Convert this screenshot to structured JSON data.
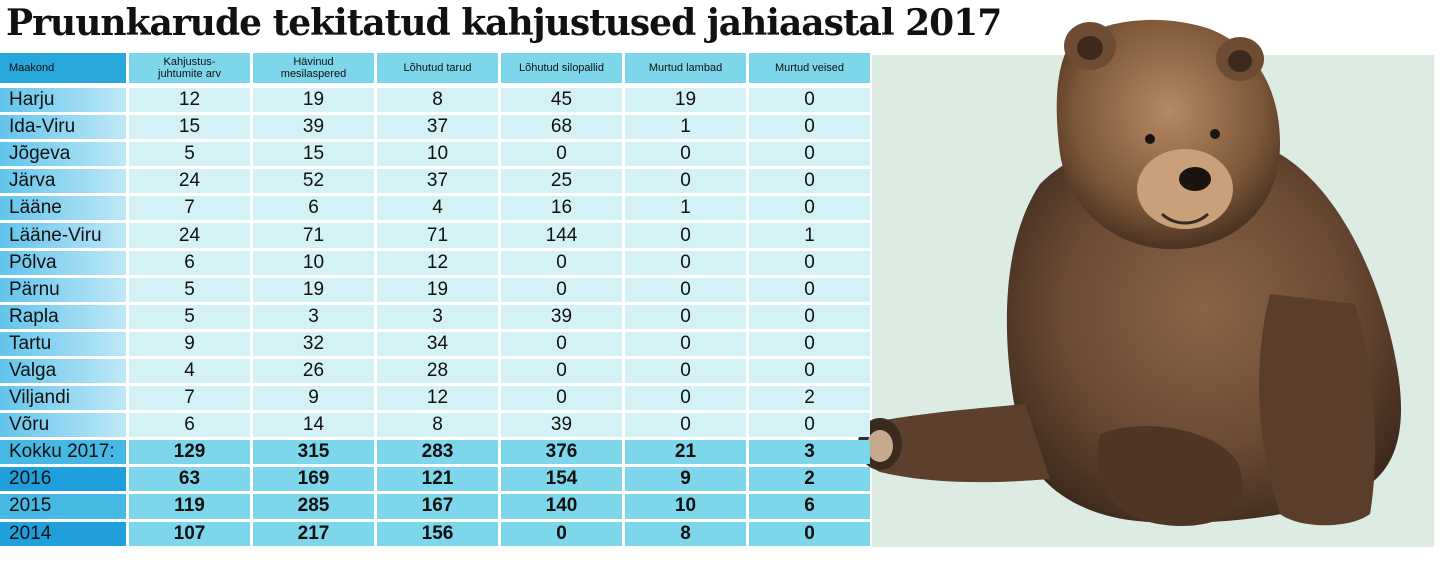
{
  "title": "Pruunkarude tekitatud kahjustused jahiaastal 2017",
  "columns": [
    "Maakond",
    "Kahjustus-\njuhtumite arv",
    "Hävinud\nmesilaspered",
    "Lõhutud tarud",
    "Lõhutud silopallid",
    "Murtud lambad",
    "Murtud veised"
  ],
  "rows": [
    [
      "Harju",
      "12",
      "19",
      "8",
      "45",
      "19",
      "0"
    ],
    [
      "Ida-Viru",
      "15",
      "39",
      "37",
      "68",
      "1",
      "0"
    ],
    [
      "Jõgeva",
      "5",
      "15",
      "10",
      "0",
      "0",
      "0"
    ],
    [
      "Järva",
      "24",
      "52",
      "37",
      "25",
      "0",
      "0"
    ],
    [
      "Lääne",
      "7",
      "6",
      "4",
      "16",
      "1",
      "0"
    ],
    [
      "Lääne-Viru",
      "24",
      "71",
      "71",
      "144",
      "0",
      "1"
    ],
    [
      "Põlva",
      "6",
      "10",
      "12",
      "0",
      "0",
      "0"
    ],
    [
      "Pärnu",
      "5",
      "19",
      "19",
      "0",
      "0",
      "0"
    ],
    [
      "Rapla",
      "5",
      "3",
      "3",
      "39",
      "0",
      "0"
    ],
    [
      "Tartu",
      "9",
      "32",
      "34",
      "0",
      "0",
      "0"
    ],
    [
      "Valga",
      "4",
      "26",
      "28",
      "0",
      "0",
      "0"
    ],
    [
      "Viljandi",
      "7",
      "9",
      "12",
      "0",
      "0",
      "2"
    ],
    [
      "Võru",
      "6",
      "14",
      "8",
      "39",
      "0",
      "0"
    ]
  ],
  "totals": [
    [
      "Kokku 2017:",
      "129",
      "315",
      "283",
      "376",
      "21",
      "3"
    ],
    [
      "2016",
      "63",
      "169",
      "121",
      "154",
      "9",
      "2"
    ],
    [
      "2015",
      "119",
      "285",
      "167",
      "140",
      "10",
      "6"
    ],
    [
      "2014",
      "107",
      "217",
      "156",
      "0",
      "8",
      "0"
    ]
  ],
  "colors": {
    "header_light": "#7dd6ea",
    "header_dark": "#28a7da",
    "cell_light": "#d4f1f6",
    "panel_bg": "#dcece3",
    "bear_fur": "#6b4a34"
  },
  "image": {
    "subject": "brown-bear-photo"
  }
}
